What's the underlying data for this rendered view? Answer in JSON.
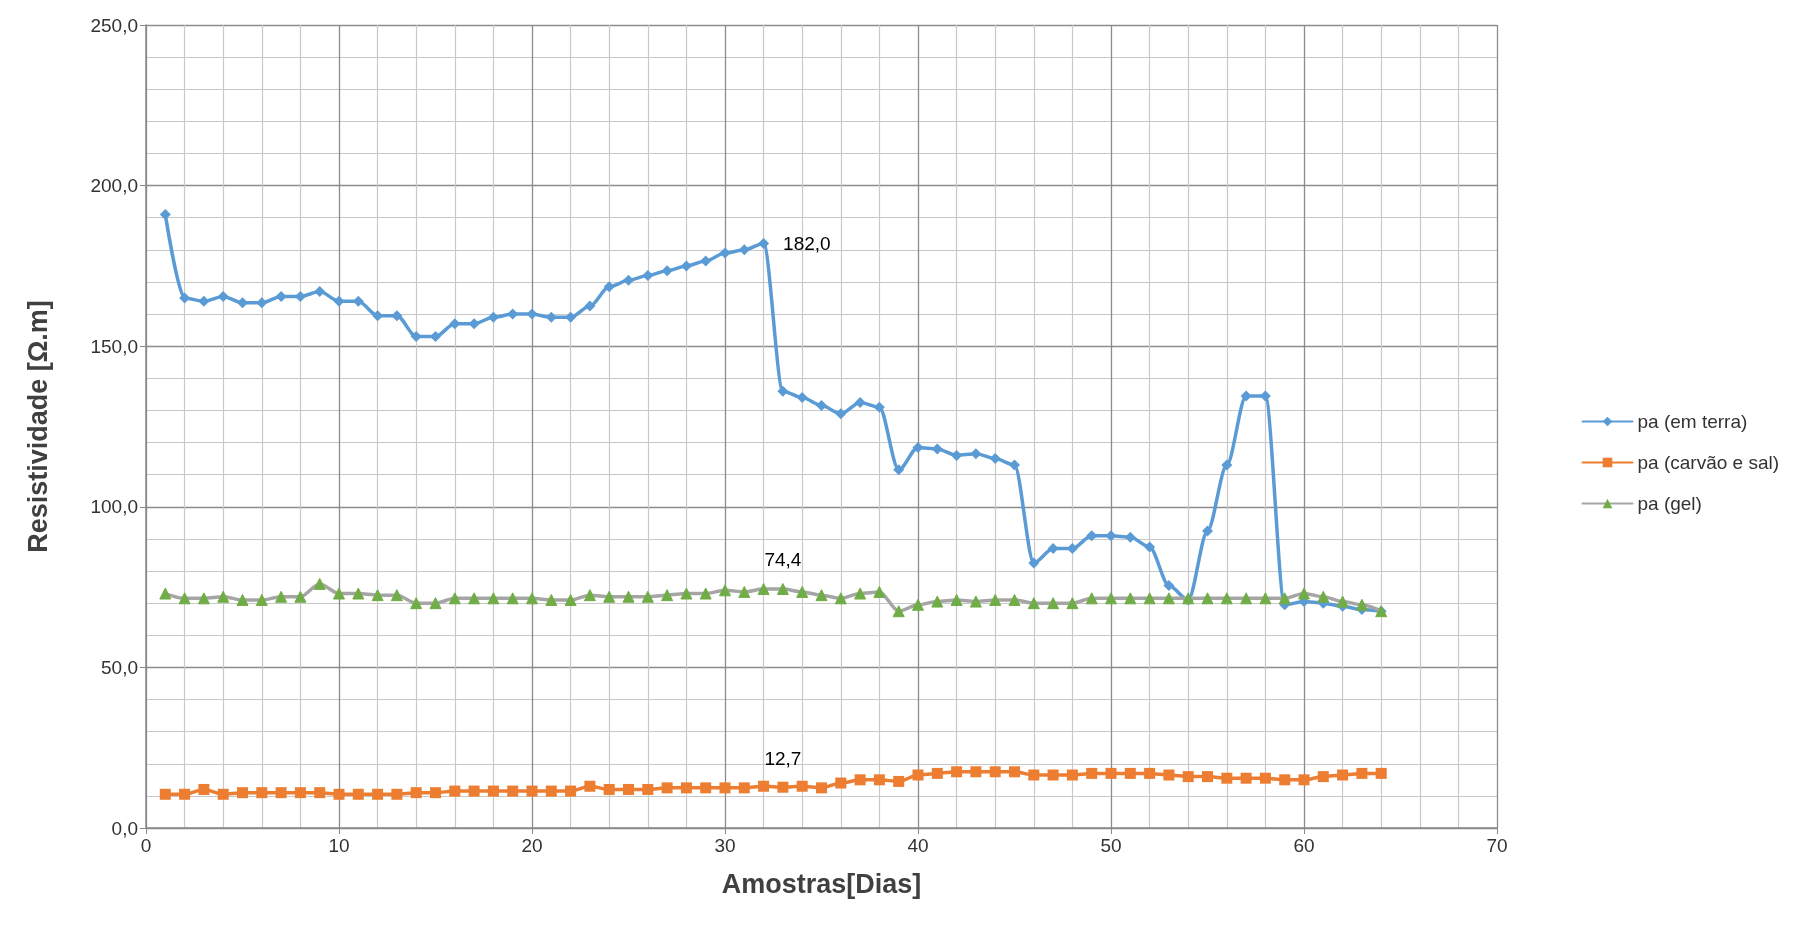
{
  "chart_data": {
    "type": "line",
    "xlabel": "Amostras[Dias]",
    "ylabel": "Resistividade [Ω.m]",
    "x": [
      1,
      2,
      3,
      4,
      5,
      6,
      7,
      8,
      9,
      10,
      11,
      12,
      13,
      14,
      15,
      16,
      17,
      18,
      19,
      20,
      21,
      22,
      23,
      24,
      25,
      26,
      27,
      28,
      29,
      30,
      31,
      32,
      33,
      34,
      35,
      36,
      37,
      38,
      39,
      40,
      41,
      42,
      43,
      44,
      45,
      46,
      47,
      48,
      49,
      50,
      51,
      52,
      53,
      54,
      55,
      56,
      57,
      58,
      59,
      60,
      61,
      62,
      63,
      64
    ],
    "series": [
      {
        "name": "pa (em terra)",
        "color": "#5b9bd5",
        "marker": "diamond",
        "values": [
          191,
          165,
          164,
          165.5,
          163.5,
          163.5,
          165.5,
          165.5,
          167,
          164,
          164,
          159.5,
          159.5,
          153,
          153,
          157,
          157,
          159,
          160,
          160,
          159,
          159,
          162.5,
          168.5,
          170.5,
          172,
          173.5,
          175,
          176.5,
          179,
          180,
          182,
          136,
          134,
          131.5,
          129,
          132.5,
          131,
          111.5,
          118.5,
          118,
          116,
          116.5,
          115,
          113,
          82.5,
          87,
          87,
          91,
          91,
          90.5,
          87.5,
          75.5,
          71,
          92.5,
          113,
          134.5,
          134.5,
          69.5,
          70.5,
          70,
          69,
          68,
          67.5
        ],
        "value_labels": [
          null,
          null,
          null,
          null,
          null,
          null,
          null,
          null,
          null,
          null,
          null,
          null,
          null,
          null,
          null,
          null,
          null,
          null,
          null,
          null,
          null,
          null,
          null,
          null,
          null,
          null,
          null,
          null,
          null,
          null,
          null,
          "182,0",
          null,
          null,
          null,
          null,
          null,
          null,
          null,
          null,
          null,
          null,
          null,
          null,
          null,
          null,
          null,
          null,
          null,
          null,
          null,
          null,
          null,
          null,
          null,
          null,
          null,
          null,
          null,
          null,
          null,
          null,
          null,
          null
        ]
      },
      {
        "name": "pa (carvão e sal)",
        "color": "#ed7d31",
        "marker": "square",
        "values": [
          10.5,
          10.5,
          12,
          10.5,
          11,
          11,
          11,
          11,
          11,
          10.5,
          10.5,
          10.5,
          10.5,
          11,
          11,
          11.5,
          11.5,
          11.5,
          11.5,
          11.5,
          11.5,
          11.5,
          13,
          12,
          12,
          12,
          12.5,
          12.5,
          12.5,
          12.5,
          12.5,
          13,
          12.7,
          13,
          12.5,
          14,
          15,
          15,
          14.5,
          16.5,
          17,
          17.5,
          17.5,
          17.5,
          17.5,
          16.5,
          16.5,
          16.5,
          17,
          17,
          17,
          17,
          16.5,
          16,
          16,
          15.5,
          15.5,
          15.5,
          15,
          15,
          16,
          16.5,
          17,
          17
        ],
        "value_labels": [
          null,
          null,
          null,
          null,
          null,
          null,
          null,
          null,
          null,
          null,
          null,
          null,
          null,
          null,
          null,
          null,
          null,
          null,
          null,
          null,
          null,
          null,
          null,
          null,
          null,
          null,
          null,
          null,
          null,
          null,
          null,
          null,
          "12,7",
          null,
          null,
          null,
          null,
          null,
          null,
          null,
          null,
          null,
          null,
          null,
          null,
          null,
          null,
          null,
          null,
          null,
          null,
          null,
          null,
          null,
          null,
          null,
          null,
          null,
          null,
          null,
          null,
          null,
          null,
          null
        ]
      },
      {
        "name": "pa (gel)",
        "color": "#a5a5a5",
        "marker": "triangle",
        "colors": [
          "#70ad47",
          "#70ad47",
          "#70ad47",
          "#70ad47",
          "#70ad47",
          "#70ad47",
          "#70ad47",
          "#70ad47",
          "#70ad47",
          "#70ad47",
          "#70ad47",
          "#70ad47",
          "#70ad47",
          "#70ad47",
          "#70ad47",
          "#70ad47",
          "#70ad47",
          "#70ad47",
          "#70ad47",
          "#70ad47",
          "#70ad47",
          "#70ad47",
          "#70ad47",
          "#70ad47",
          "#70ad47",
          "#70ad47",
          "#70ad47",
          "#70ad47",
          "#70ad47",
          "#70ad47",
          "#70ad47",
          "#70ad47",
          "#70ad47",
          "#70ad47",
          "#70ad47",
          "#70ad47",
          "#70ad47",
          "#70ad47",
          "#70ad47",
          "#70ad47",
          "#70ad47",
          "#70ad47",
          "#70ad47",
          "#70ad47",
          "#70ad47",
          "#70ad47",
          "#70ad47",
          "#70ad47",
          "#70ad47",
          "#70ad47",
          "#70ad47",
          "#70ad47",
          "#70ad47",
          "#70ad47",
          "#70ad47",
          "#70ad47",
          "#70ad47",
          "#70ad47",
          "#70ad47",
          "#70ad47",
          "#70ad47",
          "#70ad47",
          "#70ad47",
          "#70ad47"
        ],
        "values": [
          73,
          71.5,
          71.5,
          72,
          71,
          71,
          72,
          72,
          76,
          73,
          73,
          72.5,
          72.5,
          70,
          70,
          71.5,
          71.5,
          71.5,
          71.5,
          71.5,
          71,
          71,
          72.5,
          72,
          72,
          72,
          72.5,
          73,
          73,
          74,
          73.5,
          74.4,
          74.4,
          73.5,
          72.5,
          71.5,
          73,
          73.5,
          67.5,
          69.5,
          70.5,
          71,
          70.5,
          71,
          71,
          70,
          70,
          70,
          71.5,
          71.5,
          71.5,
          71.5,
          71.5,
          71.5,
          71.5,
          71.5,
          71.5,
          71.5,
          71.5,
          73,
          72,
          70.5,
          69.5,
          67.5
        ],
        "value_labels": [
          null,
          null,
          null,
          null,
          null,
          null,
          null,
          null,
          null,
          null,
          null,
          null,
          null,
          null,
          null,
          null,
          null,
          null,
          null,
          null,
          null,
          null,
          null,
          null,
          null,
          null,
          null,
          null,
          null,
          null,
          null,
          null,
          "74,4",
          null,
          null,
          null,
          null,
          null,
          null,
          null,
          null,
          null,
          null,
          null,
          null,
          null,
          null,
          null,
          null,
          null,
          null,
          null,
          null,
          null,
          null,
          null,
          null,
          null,
          null,
          null,
          null,
          null,
          null,
          null
        ]
      }
    ],
    "xlim": [
      0,
      70
    ],
    "xticks": [
      0,
      10,
      20,
      30,
      40,
      50,
      60,
      70
    ],
    "ylim": [
      0,
      250
    ],
    "yticks": [
      {
        "value": 0,
        "label": "0,0"
      },
      {
        "value": 50,
        "label": "50,0"
      },
      {
        "value": 100,
        "label": "100,0"
      },
      {
        "value": 150,
        "label": "150,0"
      },
      {
        "value": 200,
        "label": "200,0"
      },
      {
        "value": 250,
        "label": "250,0"
      }
    ],
    "grid": true,
    "legend": "right",
    "line_style": "solid"
  }
}
